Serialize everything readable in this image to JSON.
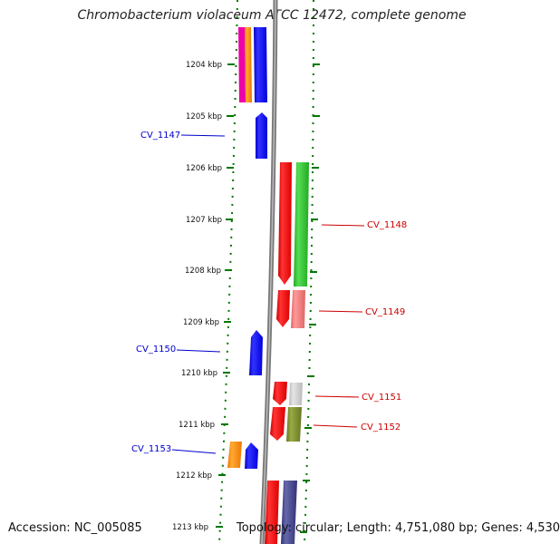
{
  "title": "Chromobacterium violaceum ATCC 12472, complete genome",
  "accession_text": "Accession: NC_005085",
  "topology_text": "Topology: circular; Length: 4,751,080 bp; Genes: 4,530",
  "position_ticks": [
    "1204 kbp",
    "1205 kbp",
    "1206 kbp",
    "1207 kbp",
    "1208 kbp",
    "1209 kbp",
    "1210 kbp",
    "1211 kbp",
    "1212 kbp",
    "1213 kbp"
  ],
  "gene_labels": {
    "forward": [
      "CV_1148",
      "CV_1149",
      "CV_1151",
      "CV_1152"
    ],
    "reverse": [
      "CV_1147",
      "CV_1150",
      "CV_1153"
    ]
  },
  "colors": {
    "backbone": "#888888",
    "tick": "#007700",
    "forward_label": "#cc0000",
    "reverse_label": "#0000cc",
    "cds_blue": "#0000ff",
    "cds_red": "#ff0000",
    "cds_green": "#33bb33",
    "cds_pink": "#ee7777",
    "cds_olive": "#778833",
    "cds_orange": "#ff8800",
    "cds_magenta": "#ee00aa",
    "cds_grey": "#cccccc",
    "cds_navy": "#444488"
  }
}
